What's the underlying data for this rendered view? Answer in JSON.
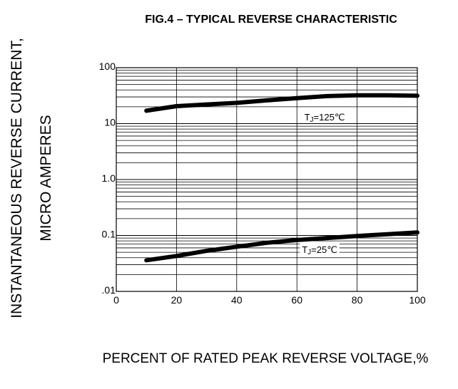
{
  "chart_data": {
    "type": "line",
    "title": "FIG.4 – TYPICAL REVERSE CHARACTERISTIC",
    "xlabel": "PERCENT OF RATED PEAK REVERSE VOLTAGE,%",
    "ylabel_line1": "INSTANTANEOUS REVERSE CURRENT,",
    "ylabel_line2": "MICRO AMPERES",
    "xlim": [
      0,
      100
    ],
    "ylim": [
      0.01,
      100
    ],
    "yscale": "log",
    "grid": true,
    "x_ticks": [
      0,
      20,
      40,
      60,
      80,
      100
    ],
    "x_tick_labels": [
      "0",
      "20",
      "40",
      "60",
      "80",
      "100"
    ],
    "y_ticks": [
      0.01,
      0.1,
      1.0,
      10,
      100
    ],
    "y_tick_labels": [
      ".01",
      "0.1",
      "1.0",
      "10",
      "100"
    ],
    "series": [
      {
        "name": "TJ=125℃",
        "label_prefix": "T",
        "label_sub": "J",
        "label_suffix": "=125℃",
        "x": [
          10,
          20,
          30,
          40,
          50,
          60,
          70,
          80,
          90,
          100
        ],
        "y": [
          17,
          20.5,
          22,
          23.5,
          26,
          28.5,
          31,
          32,
          32,
          31.5
        ]
      },
      {
        "name": "TJ=25℃",
        "label_prefix": "T",
        "label_sub": "J",
        "label_suffix": "=25℃",
        "x": [
          10,
          20,
          30,
          40,
          50,
          60,
          70,
          80,
          90,
          100
        ],
        "y": [
          0.036,
          0.043,
          0.053,
          0.063,
          0.074,
          0.083,
          0.09,
          0.098,
          0.105,
          0.113
        ]
      }
    ]
  }
}
